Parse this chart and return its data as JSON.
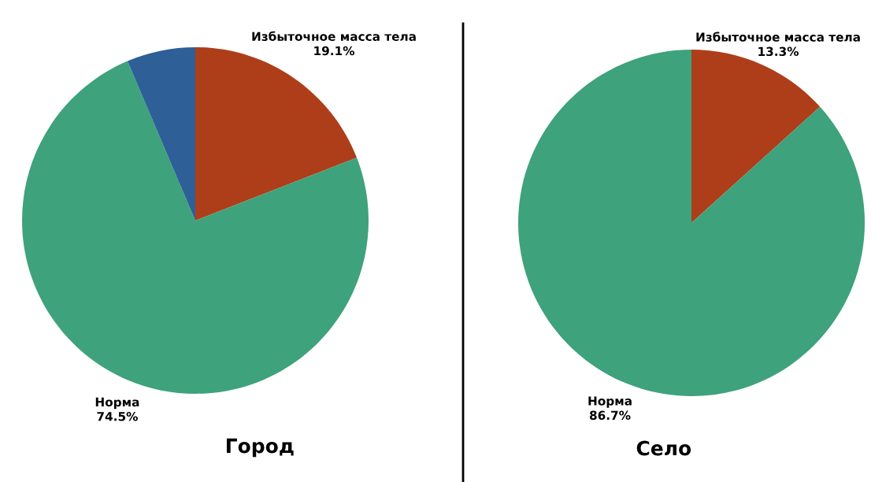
{
  "chart_data": [
    {
      "type": "pie",
      "title": "Город",
      "categories": [
        "Избыточное масса тела",
        "Норма",
        null
      ],
      "values": [
        19.1,
        74.5,
        6.4
      ],
      "value_labels": [
        "19.1%",
        "74.5%",
        null
      ],
      "colors": [
        "#ae3e1a",
        "#3ea27c",
        "#2e5f97"
      ],
      "legend": false
    },
    {
      "type": "pie",
      "title": "Село",
      "categories": [
        "Избыточное масса тела",
        "Норма"
      ],
      "values": [
        13.3,
        86.7
      ],
      "value_labels": [
        "13.3%",
        "86.7%"
      ],
      "colors": [
        "#ae3e1a",
        "#3ea27c"
      ],
      "legend": false
    }
  ]
}
